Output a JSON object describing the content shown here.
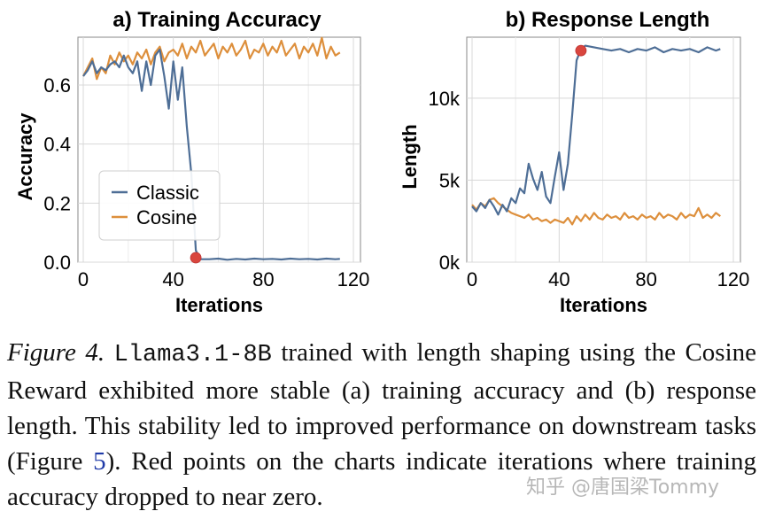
{
  "colors": {
    "classic": "#4e6e96",
    "cosine": "#dd8f3c",
    "marker": "#d9463e",
    "grid": "#d8d8d8"
  },
  "chart_data": [
    {
      "type": "line",
      "title": "a) Training Accuracy",
      "xlabel": "Iterations",
      "ylabel": "Accuracy",
      "xlim": [
        0,
        120
      ],
      "ylim": [
        0,
        0.75
      ],
      "xticks": [
        0,
        40,
        80,
        120
      ],
      "xtick_labels": [
        "0",
        "40",
        "80",
        "120"
      ],
      "yticks": [
        0.0,
        0.2,
        0.4,
        0.6
      ],
      "ytick_labels": [
        "0.0",
        "0.2",
        "0.4",
        "0.6"
      ],
      "legend": {
        "placement": "left-middle",
        "entries": [
          "Classic",
          "Cosine"
        ]
      },
      "series": [
        {
          "name": "Classic",
          "x": [
            0,
            2,
            4,
            6,
            8,
            10,
            12,
            14,
            16,
            18,
            20,
            22,
            24,
            26,
            28,
            30,
            32,
            34,
            36,
            38,
            40,
            42,
            44,
            46,
            48,
            50,
            52,
            56,
            60,
            64,
            68,
            72,
            76,
            80,
            84,
            88,
            92,
            96,
            100,
            104,
            108,
            112,
            114
          ],
          "y": [
            0.63,
            0.65,
            0.68,
            0.64,
            0.66,
            0.65,
            0.67,
            0.68,
            0.66,
            0.7,
            0.66,
            0.64,
            0.68,
            0.58,
            0.68,
            0.6,
            0.7,
            0.72,
            0.63,
            0.52,
            0.68,
            0.55,
            0.66,
            0.46,
            0.3,
            0.04,
            0.01,
            0.01,
            0.012,
            0.008,
            0.011,
            0.009,
            0.012,
            0.01,
            0.011,
            0.009,
            0.012,
            0.01,
            0.011,
            0.009,
            0.012,
            0.01,
            0.011
          ]
        },
        {
          "name": "Cosine",
          "x": [
            0,
            2,
            4,
            6,
            8,
            10,
            12,
            14,
            16,
            18,
            20,
            22,
            24,
            26,
            28,
            30,
            32,
            34,
            36,
            38,
            40,
            42,
            44,
            46,
            48,
            50,
            52,
            54,
            56,
            58,
            60,
            62,
            64,
            66,
            68,
            70,
            72,
            74,
            76,
            78,
            80,
            82,
            84,
            86,
            88,
            90,
            92,
            94,
            96,
            98,
            100,
            102,
            104,
            106,
            108,
            110,
            112,
            114
          ],
          "y": [
            0.63,
            0.66,
            0.69,
            0.62,
            0.66,
            0.64,
            0.7,
            0.67,
            0.71,
            0.68,
            0.7,
            0.67,
            0.71,
            0.69,
            0.72,
            0.67,
            0.71,
            0.73,
            0.68,
            0.71,
            0.72,
            0.7,
            0.74,
            0.69,
            0.73,
            0.71,
            0.75,
            0.7,
            0.72,
            0.74,
            0.69,
            0.73,
            0.71,
            0.74,
            0.7,
            0.72,
            0.75,
            0.69,
            0.72,
            0.71,
            0.74,
            0.7,
            0.73,
            0.71,
            0.75,
            0.7,
            0.72,
            0.74,
            0.69,
            0.73,
            0.71,
            0.74,
            0.7,
            0.76,
            0.69,
            0.73,
            0.7,
            0.71
          ]
        }
      ],
      "markers": [
        {
          "x": 50,
          "y": 0.015
        }
      ]
    },
    {
      "type": "line",
      "title": "b) Response Length",
      "xlabel": "Iterations",
      "ylabel": "Length",
      "xlim": [
        0,
        120
      ],
      "ylim": [
        0,
        13500
      ],
      "xticks": [
        0,
        40,
        80,
        120
      ],
      "xtick_labels": [
        "0",
        "40",
        "80",
        "120"
      ],
      "yticks": [
        0,
        5000,
        10000
      ],
      "ytick_labels": [
        "0k",
        "5k",
        "10k"
      ],
      "series": [
        {
          "name": "Classic",
          "x": [
            0,
            2,
            4,
            6,
            8,
            10,
            12,
            14,
            16,
            18,
            20,
            22,
            24,
            26,
            28,
            30,
            32,
            34,
            36,
            38,
            40,
            42,
            44,
            46,
            48,
            50,
            52,
            56,
            60,
            64,
            68,
            72,
            76,
            80,
            84,
            88,
            92,
            96,
            100,
            104,
            108,
            112,
            114
          ],
          "y": [
            3400,
            3100,
            3600,
            3300,
            3800,
            3400,
            2900,
            3500,
            3100,
            3900,
            3600,
            4500,
            4200,
            6000,
            5100,
            4400,
            5500,
            4000,
            3600,
            5200,
            6700,
            4400,
            6000,
            9000,
            12300,
            13000,
            13200,
            13100,
            13000,
            12900,
            13000,
            12800,
            13000,
            12900,
            13100,
            12800,
            13000,
            12900,
            13000,
            12800,
            13100,
            12900,
            13000
          ]
        },
        {
          "name": "Cosine",
          "x": [
            0,
            2,
            4,
            6,
            8,
            10,
            12,
            14,
            16,
            18,
            20,
            22,
            24,
            26,
            28,
            30,
            32,
            34,
            36,
            38,
            40,
            42,
            44,
            46,
            48,
            50,
            52,
            54,
            56,
            58,
            60,
            62,
            64,
            66,
            68,
            70,
            72,
            74,
            76,
            78,
            80,
            82,
            84,
            86,
            88,
            90,
            92,
            94,
            96,
            98,
            100,
            102,
            104,
            106,
            108,
            110,
            112,
            114
          ],
          "y": [
            3500,
            3200,
            3600,
            3400,
            3800,
            3900,
            3600,
            3400,
            3200,
            3000,
            2900,
            2800,
            2700,
            2900,
            2600,
            2700,
            2500,
            2600,
            2400,
            2600,
            2500,
            2400,
            2700,
            2300,
            2800,
            2500,
            2900,
            2600,
            3000,
            2700,
            2600,
            2900,
            2700,
            2800,
            2600,
            3000,
            2700,
            2800,
            2600,
            2900,
            2700,
            2800,
            2600,
            3000,
            2700,
            2900,
            2800,
            2600,
            3000,
            2700,
            2900,
            2800,
            3300,
            2700,
            2900,
            2700,
            3000,
            2800
          ]
        }
      ],
      "markers": [
        {
          "x": 50,
          "y": 12900
        }
      ]
    }
  ],
  "caption": {
    "figure_label": "Figure 4.",
    "model_name": "Llama3.1-8B",
    "text_before_ref": "trained with length shaping using the Cosine Reward exhibited more stable (a) training accuracy and (b) response length. This stability led to improved performance on downstream tasks (Figure ",
    "ref": "5",
    "text_after_ref": "). Red points on the charts indicate iterations where training accuracy dropped to near zero."
  },
  "watermark": "知乎 @唐国梁Tommy"
}
